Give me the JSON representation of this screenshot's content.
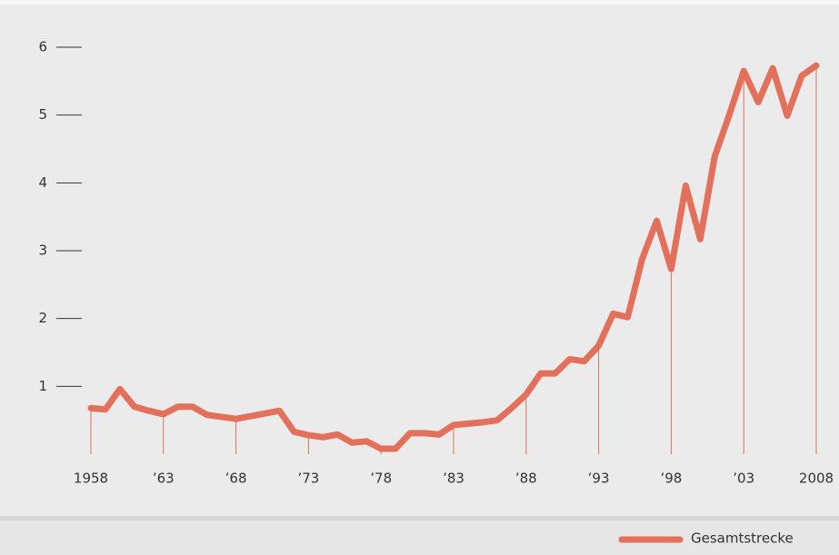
{
  "chart_data": {
    "type": "line",
    "x": [
      1958,
      1959,
      1960,
      1961,
      1962,
      1963,
      1964,
      1965,
      1966,
      1967,
      1968,
      1969,
      1970,
      1971,
      1972,
      1973,
      1974,
      1975,
      1976,
      1977,
      1978,
      1979,
      1980,
      1981,
      1982,
      1983,
      1984,
      1985,
      1986,
      1987,
      1988,
      1989,
      1990,
      1991,
      1992,
      1993,
      1994,
      1995,
      1996,
      1997,
      1998,
      1999,
      2000,
      2001,
      2002,
      2003,
      2004,
      2005,
      2006,
      2007,
      2008
    ],
    "series": [
      {
        "name": "Gesamtstrecke",
        "color": "#e2705a",
        "values": [
          0.68,
          0.66,
          0.96,
          0.7,
          0.64,
          0.59,
          0.7,
          0.7,
          0.58,
          0.55,
          0.52,
          0.56,
          0.6,
          0.64,
          0.33,
          0.28,
          0.25,
          0.29,
          0.17,
          0.19,
          0.08,
          0.08,
          0.31,
          0.31,
          0.29,
          0.43,
          0.45,
          0.47,
          0.5,
          0.68,
          0.88,
          1.19,
          1.19,
          1.4,
          1.37,
          1.6,
          2.07,
          2.02,
          2.88,
          3.44,
          2.73,
          3.96,
          3.17,
          4.39,
          5.0,
          5.65,
          5.19,
          5.69,
          4.99,
          5.58,
          5.73
        ]
      }
    ],
    "xlim": [
      1958,
      2008
    ],
    "xticks": [
      1958,
      {
        "value": 1963,
        "label": "’63"
      },
      {
        "value": 1968,
        "label": "’68"
      },
      {
        "value": 1973,
        "label": "’73"
      },
      {
        "value": 1978,
        "label": "’78"
      },
      {
        "value": 1983,
        "label": "’83"
      },
      {
        "value": 1988,
        "label": "’88"
      },
      {
        "value": 1993,
        "label": "’93"
      },
      {
        "value": 1998,
        "label": "’98"
      },
      {
        "value": 2003,
        "label": "’03"
      },
      2008
    ],
    "ylim": [
      0,
      6
    ],
    "yticks": [
      1,
      2,
      3,
      4,
      5,
      6
    ]
  }
}
